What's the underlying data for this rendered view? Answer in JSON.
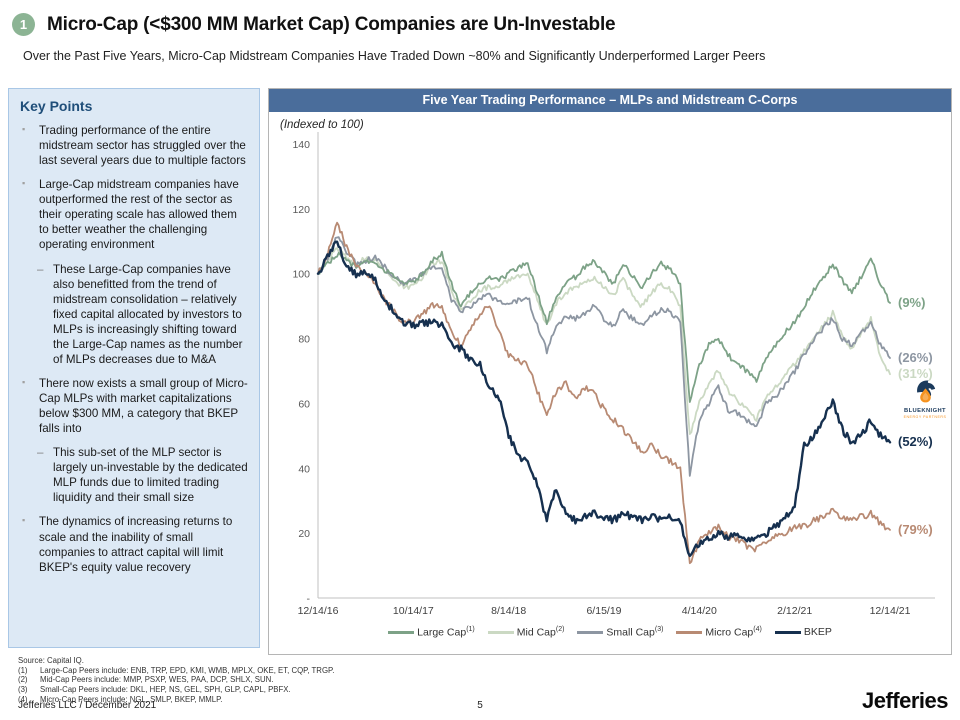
{
  "slide": {
    "badge": "1",
    "title": "Micro-Cap (<$300 MM Market Cap) Companies are Un-Investable",
    "subtitle": "Over the Past Five Years, Micro-Cap Midstream Companies Have Traded Down ~80% and Significantly Underperformed Larger Peers"
  },
  "key_points": {
    "heading": "Key Points",
    "items": [
      {
        "level": 1,
        "text": "Trading performance of the entire midstream sector has struggled over the last several years due to multiple factors"
      },
      {
        "level": 1,
        "text": "Large-Cap midstream companies have outperformed the rest of the sector as their operating scale has allowed them to better weather the challenging operating environment"
      },
      {
        "level": 2,
        "text": "These Large-Cap companies have also benefitted from the trend of midstream consolidation – relatively fixed capital allocated by investors to MLPs is increasingly shifting toward the Large-Cap names as the number of MLPs decreases due to M&A"
      },
      {
        "level": 1,
        "text": "There now exists a small group of Micro-Cap MLPs with market capitalizations below $300 MM, a category that BKEP falls into"
      },
      {
        "level": 2,
        "text": "This sub-set of the MLP sector is largely un-investable by the dedicated MLP funds due to limited trading liquidity and their small size"
      },
      {
        "level": 1,
        "text": "The dynamics of increasing returns to scale and the inability of small companies to attract capital will limit BKEP's equity value recovery"
      }
    ]
  },
  "chart_data": {
    "type": "line",
    "title": "Five Year Trading Performance – MLPs and Midstream C-Corps",
    "axis_note": "(Indexed to 100)",
    "grid": false,
    "legend_position": "bottom",
    "ylim": [
      0,
      140
    ],
    "y_ticks": [
      140,
      120,
      100,
      80,
      60,
      40,
      20
    ],
    "y_zero_label": "-",
    "x_months_total": 60,
    "x_tick_months": [
      0,
      10,
      20,
      30,
      40,
      50,
      60
    ],
    "x_tick_labels": [
      "12/14/16",
      "10/14/17",
      "8/14/18",
      "6/15/19",
      "4/14/20",
      "2/12/21",
      "12/14/21"
    ],
    "series": [
      {
        "name": "Large Cap",
        "sup": "(1)",
        "color": "#7da287",
        "end_label": "(9%)",
        "line_width": 1.8,
        "values": [
          100,
          103,
          106,
          104,
          102,
          104,
          103,
          101,
          99,
          97,
          97,
          100,
          104,
          106,
          97,
          90,
          94,
          97,
          99,
          98,
          100,
          102,
          103,
          94,
          85,
          93,
          97,
          99,
          102,
          104,
          100,
          97,
          103,
          99,
          96,
          100,
          103,
          101,
          97,
          60,
          72,
          78,
          80,
          75,
          72,
          70,
          67,
          74,
          78,
          82,
          85,
          90,
          95,
          99,
          103,
          98,
          94,
          99,
          105,
          97,
          91
        ]
      },
      {
        "name": "Mid Cap",
        "sup": "(2)",
        "color": "#cbd9c3",
        "end_label": "(31%)",
        "line_width": 1.8,
        "values": [
          100,
          104,
          108,
          105,
          103,
          105,
          104,
          101,
          98,
          96,
          96,
          99,
          103,
          104,
          95,
          89,
          92,
          95,
          96,
          96,
          98,
          99,
          100,
          92,
          84,
          91,
          94,
          96,
          97,
          99,
          96,
          93,
          99,
          93,
          90,
          94,
          97,
          95,
          90,
          50,
          60,
          66,
          70,
          64,
          61,
          58,
          55,
          62,
          65,
          69,
          72,
          76,
          80,
          84,
          88,
          81,
          77,
          82,
          86,
          74,
          69
        ]
      },
      {
        "name": "Small Cap",
        "sup": "(3)",
        "color": "#8d96a2",
        "end_label": "(26%)",
        "line_width": 1.8,
        "values": [
          100,
          105,
          112,
          107,
          103,
          104,
          105,
          102,
          99,
          97,
          98,
          100,
          102,
          102,
          92,
          88,
          90,
          93,
          93,
          91,
          90,
          92,
          93,
          84,
          76,
          84,
          87,
          86,
          88,
          90,
          86,
          84,
          89,
          86,
          84,
          87,
          89,
          88,
          85,
          38,
          55,
          60,
          65,
          58,
          57,
          55,
          53,
          60,
          62,
          66,
          70,
          75,
          80,
          83,
          86,
          80,
          78,
          82,
          85,
          78,
          74
        ]
      },
      {
        "name": "Micro Cap",
        "sup": "(4)",
        "color": "#b88a73",
        "end_label": "(79%)",
        "line_width": 1.8,
        "values": [
          100,
          106,
          116,
          108,
          103,
          100,
          97,
          92,
          88,
          85,
          85,
          88,
          90,
          90,
          82,
          78,
          83,
          88,
          90,
          82,
          75,
          73,
          72,
          64,
          56,
          64,
          66,
          62,
          65,
          63,
          58,
          55,
          52,
          48,
          45,
          47,
          44,
          42,
          40,
          10,
          18,
          20,
          22,
          19,
          18,
          16,
          15,
          17,
          19,
          20,
          22,
          22,
          24,
          25,
          27,
          25,
          24,
          25,
          26,
          23,
          21
        ]
      },
      {
        "name": "BKEP",
        "sup": "",
        "color": "#16304f",
        "end_label": "(52%)",
        "line_width": 2.4,
        "values": [
          100,
          105,
          110,
          102,
          100,
          101,
          98,
          92,
          88,
          85,
          84,
          85,
          85,
          84,
          78,
          77,
          73,
          72,
          65,
          62,
          50,
          44,
          42,
          35,
          24,
          34,
          26,
          24,
          25,
          26,
          25,
          24,
          26,
          25,
          24,
          25,
          24,
          25,
          24,
          13,
          17,
          18,
          20,
          19,
          19,
          18,
          18,
          20,
          22,
          25,
          28,
          47,
          50,
          55,
          61,
          52,
          48,
          50,
          55,
          50,
          48
        ]
      }
    ],
    "annotation_logo": {
      "name": "BLUEKNIGHT",
      "subtext": "ENERGY PARTNERS",
      "navy": "#1b3a5c",
      "orange": "#f6921e"
    }
  },
  "footnotes": {
    "source": "Source: Capital IQ.",
    "items": [
      {
        "num": "(1)",
        "text": "Large-Cap Peers include: ENB, TRP, EPD, KMI, WMB, MPLX, OKE, ET, CQP, TRGP."
      },
      {
        "num": "(2)",
        "text": "Mid-Cap Peers include: MMP, PSXP, WES, PAA, DCP, SHLX, SUN."
      },
      {
        "num": "(3)",
        "text": "Small-Cap Peers include: DKL, HEP, NS, GEL, SPH, GLP, CAPL, PBFX."
      },
      {
        "num": "(4)",
        "text": "Micro-Cap Peers include: NGL, SMLP, BKEP, MMLP."
      }
    ]
  },
  "footer": {
    "left": "Jefferies LLC / December 2021",
    "page": "5",
    "logo": "Jefferies"
  }
}
